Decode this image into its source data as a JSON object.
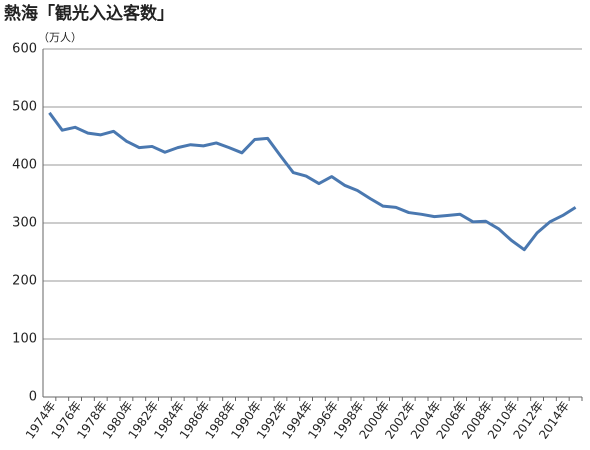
{
  "chart_data": {
    "type": "line",
    "title": "熱海「観光入込客数」",
    "y_label": "（万人）",
    "categories": [
      "1974年",
      null,
      "1976年",
      null,
      "1978年",
      null,
      "1980年",
      null,
      "1982年",
      null,
      "1984年",
      null,
      "1986年",
      null,
      "1988年",
      null,
      "1990年",
      null,
      "1992年",
      null,
      "1994年",
      null,
      "1996年",
      null,
      "1998年",
      null,
      "2000年",
      null,
      "2002年",
      null,
      "2004年",
      null,
      "2006年",
      null,
      "2008年",
      null,
      "2010年",
      null,
      "2012年",
      null,
      "2014年",
      null
    ],
    "values": [
      490,
      460,
      465,
      455,
      452,
      458,
      441,
      430,
      432,
      422,
      430,
      435,
      433,
      438,
      430,
      421,
      444,
      446,
      416,
      387,
      381,
      368,
      380,
      365,
      356,
      342,
      329,
      327,
      318,
      315,
      311,
      313,
      315,
      302,
      303,
      290,
      270,
      254,
      283,
      302,
      313,
      327
    ],
    "color": "#4a78b0",
    "ylim": [
      0,
      600
    ],
    "yticks": [
      0,
      100,
      200,
      300,
      400,
      500,
      600
    ],
    "grid": true
  }
}
